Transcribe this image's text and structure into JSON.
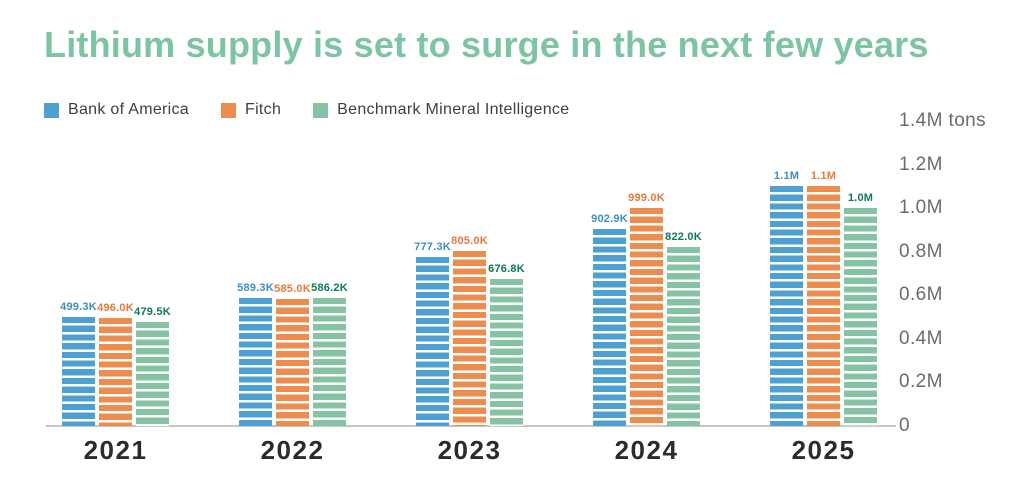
{
  "title": {
    "text": "Lithium supply is set to surge in the next few years",
    "color": "#7CC4A2"
  },
  "legend": [
    {
      "label": "Bank of America",
      "color": "#4DA0CF"
    },
    {
      "label": "Fitch",
      "color": "#EC8C4E"
    },
    {
      "label": "Benchmark Mineral Intelligence",
      "color": "#86C3A4"
    }
  ],
  "chart_data": {
    "type": "bar",
    "title": "Lithium supply is set to surge in the next few years",
    "categories": [
      "2021",
      "2022",
      "2023",
      "2024",
      "2025"
    ],
    "series": [
      {
        "name": "Bank of America",
        "color": "#4DA0CF",
        "label_color": "#3E8FC1",
        "values": [
          499300,
          589300,
          777300,
          902900,
          1100000
        ],
        "labels": [
          "499.3K",
          "589.3K",
          "777.3K",
          "902.9K",
          "1.1M"
        ]
      },
      {
        "name": "Fitch",
        "color": "#EC8C4E",
        "label_color": "#E8793B",
        "values": [
          496000,
          585000,
          805000,
          999000,
          1100000
        ],
        "labels": [
          "496.0K",
          "585.0K",
          "805.0K",
          "999.0K",
          "1.1M"
        ]
      },
      {
        "name": "Benchmark Mineral Intelligence",
        "color": "#86C3A4",
        "label_color": "#0E7B4E",
        "values": [
          479500,
          586200,
          676800,
          822000,
          1000000
        ],
        "labels": [
          "479.5K",
          "586.2K",
          "676.8K",
          "822.0K",
          "1.0M"
        ]
      }
    ],
    "xlabel": "",
    "ylabel": "tons",
    "ylim": [
      0,
      1400000
    ],
    "yticks": [
      {
        "value": 1400000,
        "label": "1.4M tons"
      },
      {
        "value": 1200000,
        "label": "1.2M"
      },
      {
        "value": 1000000,
        "label": "1.0M"
      },
      {
        "value": 800000,
        "label": "0.8M"
      },
      {
        "value": 600000,
        "label": "0.6M"
      },
      {
        "value": 400000,
        "label": "0.4M"
      },
      {
        "value": 200000,
        "label": "0.2M"
      },
      {
        "value": 0,
        "label": "0"
      }
    ],
    "grid": false,
    "legend_position": "top-left",
    "colors": {
      "axis_line": "#C6C6C6",
      "tick_label": "#6B6B6B",
      "year_label": "#2B2B2B",
      "legend_label": "#3F3F3F"
    }
  }
}
